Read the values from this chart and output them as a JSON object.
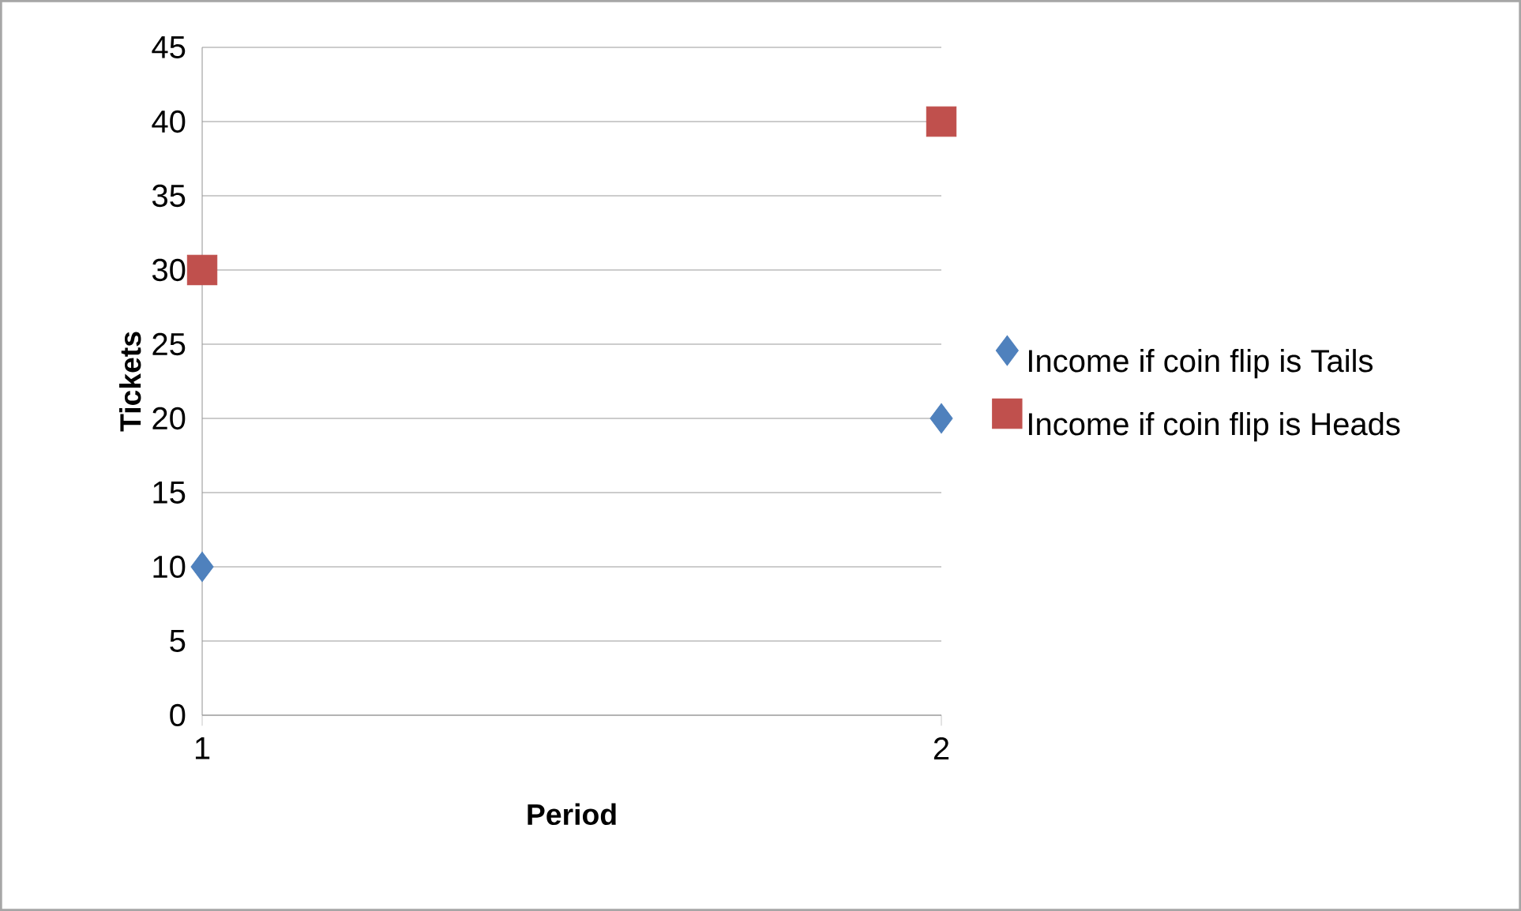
{
  "chart_data": {
    "type": "scatter",
    "xlabel": "Period",
    "ylabel": "Tickets",
    "x": [
      1,
      2
    ],
    "series": [
      {
        "name": "Income if coin flip is Tails",
        "color": "#4f81bd",
        "marker": "diamond",
        "values": [
          10,
          20
        ]
      },
      {
        "name": "Income if coin flip is Heads",
        "color": "#c0504d",
        "marker": "square",
        "values": [
          30,
          40
        ]
      }
    ],
    "xlim": [
      1,
      2
    ],
    "xticks": [
      1,
      2
    ],
    "ylim": [
      0,
      45
    ],
    "yticks": [
      0,
      5,
      10,
      15,
      20,
      25,
      30,
      35,
      40,
      45
    ],
    "grid": "y",
    "legend": "right"
  }
}
